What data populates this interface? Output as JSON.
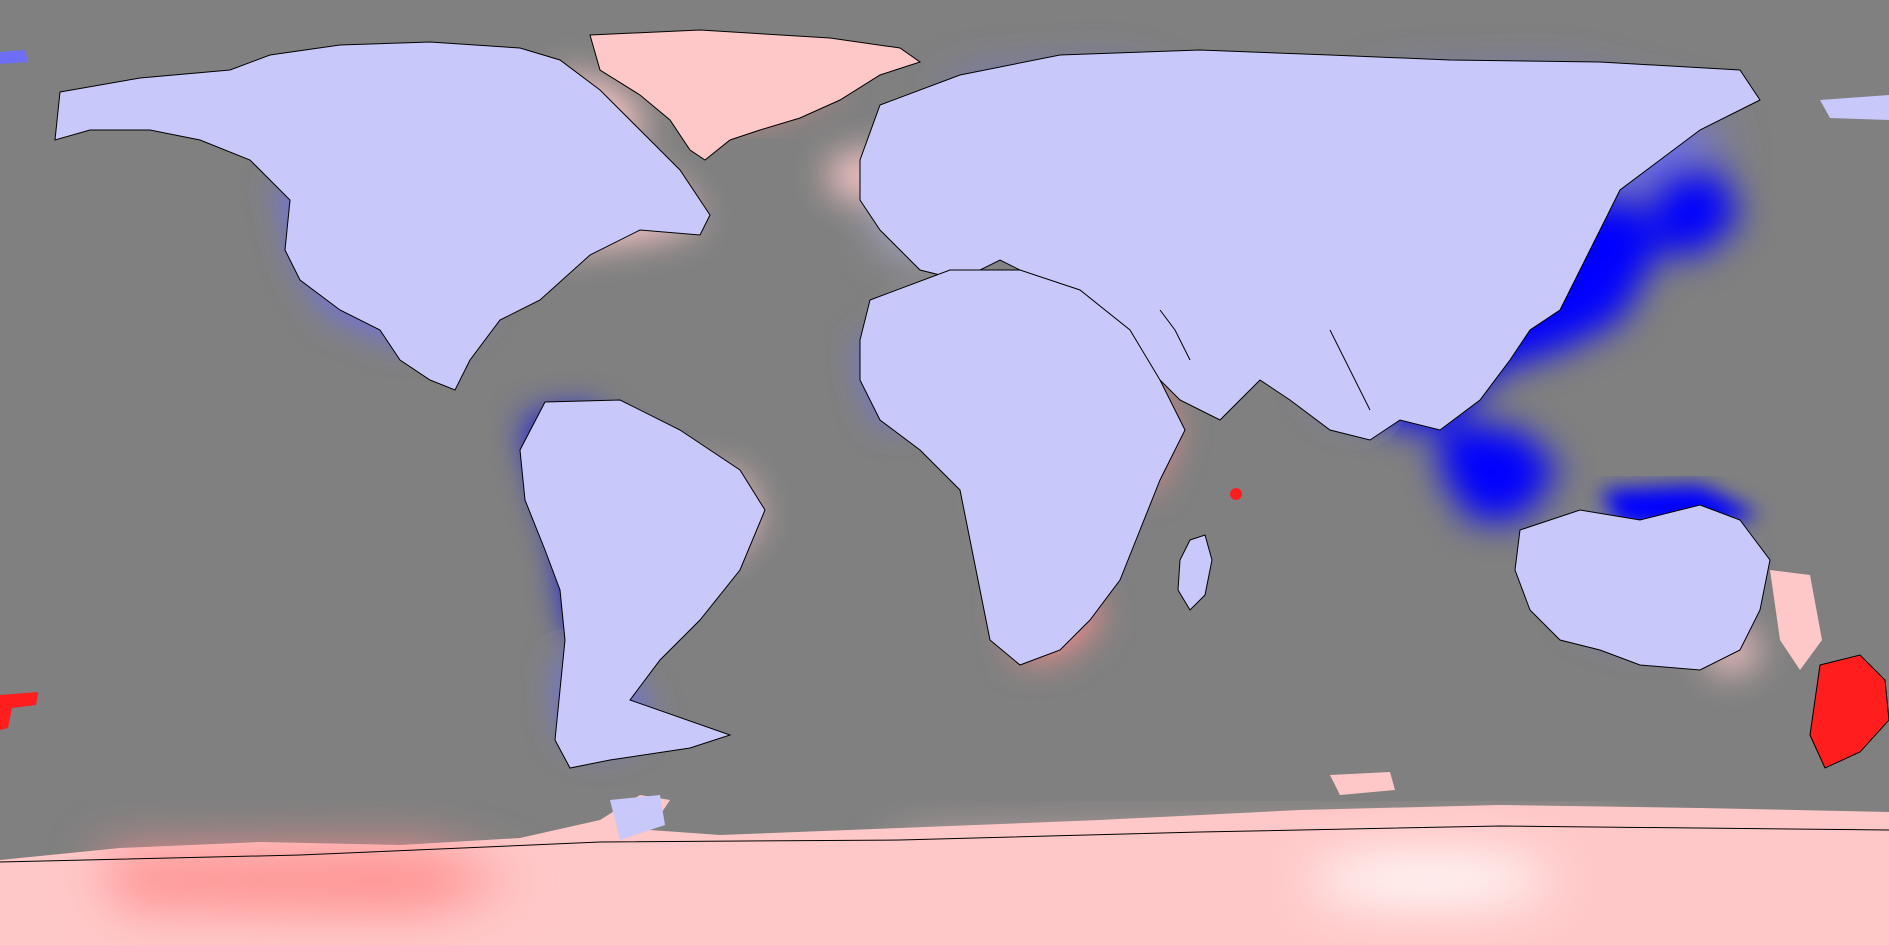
{
  "map": {
    "projection": "equirectangular",
    "colors": {
      "ocean_mask": "#808080",
      "strong_negative": "#0000ff",
      "moderate_negative": "#6e6ef5",
      "weak_negative": "#c8c8fa",
      "neutral": "#ffffff",
      "weak_positive": "#ffc8c8",
      "moderate_positive": "#ff8c8c",
      "strong_positive": "#ff1e1e",
      "coastline": "#000000"
    },
    "legend": null
  }
}
